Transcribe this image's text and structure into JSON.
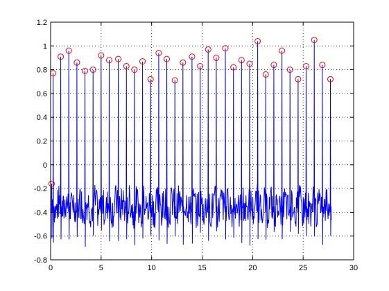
{
  "window": {
    "background": "#ffffff"
  },
  "chart_data": {
    "type": "line",
    "title": "",
    "xlabel": "",
    "ylabel": "",
    "xlim": [
      0,
      30
    ],
    "ylim": [
      -0.8,
      1.2
    ],
    "xticks": [
      0,
      5,
      10,
      15,
      20,
      25,
      30
    ],
    "yticks": [
      -0.8,
      -0.6,
      -0.4,
      -0.2,
      0,
      0.2,
      0.4,
      0.6,
      0.8,
      1,
      1.2
    ],
    "xtick_labels": [
      "0",
      "5",
      "10",
      "15",
      "20",
      "25",
      "30"
    ],
    "ytick_labels": [
      "-0.8",
      "-0.6",
      "-0.4",
      "-0.2",
      "0",
      "0.2",
      "0.4",
      "0.6",
      "0.8",
      "1",
      "1.2"
    ],
    "grid": true,
    "grid_style": "dotted",
    "legend": "none",
    "series": [
      {
        "kind": "line",
        "color": "#0000ff",
        "baseline_range": [
          -0.5,
          -0.2
        ],
        "trough_range": [
          -0.69,
          -0.55
        ],
        "x_end": 27.8,
        "peaks": [
          {
            "x": 0.1,
            "y": -0.16
          },
          {
            "x": 0.25,
            "y": 0.77
          },
          {
            "x": 1.0,
            "y": 0.91
          },
          {
            "x": 1.8,
            "y": 0.96
          },
          {
            "x": 2.6,
            "y": 0.86
          },
          {
            "x": 3.4,
            "y": 0.79
          },
          {
            "x": 4.2,
            "y": 0.8
          },
          {
            "x": 5.0,
            "y": 0.92
          },
          {
            "x": 5.8,
            "y": 0.88
          },
          {
            "x": 6.7,
            "y": 0.89
          },
          {
            "x": 7.5,
            "y": 0.83
          },
          {
            "x": 8.3,
            "y": 0.8
          },
          {
            "x": 9.1,
            "y": 0.87
          },
          {
            "x": 9.9,
            "y": 0.72
          },
          {
            "x": 10.7,
            "y": 0.94
          },
          {
            "x": 11.5,
            "y": 0.89
          },
          {
            "x": 12.3,
            "y": 0.71
          },
          {
            "x": 13.1,
            "y": 0.86
          },
          {
            "x": 14.0,
            "y": 0.91
          },
          {
            "x": 14.8,
            "y": 0.83
          },
          {
            "x": 15.6,
            "y": 0.97
          },
          {
            "x": 16.4,
            "y": 0.9
          },
          {
            "x": 17.3,
            "y": 0.98
          },
          {
            "x": 18.1,
            "y": 0.82
          },
          {
            "x": 18.9,
            "y": 0.88
          },
          {
            "x": 19.7,
            "y": 0.85
          },
          {
            "x": 20.5,
            "y": 1.04
          },
          {
            "x": 21.3,
            "y": 0.76
          },
          {
            "x": 22.1,
            "y": 0.84
          },
          {
            "x": 22.9,
            "y": 0.96
          },
          {
            "x": 23.7,
            "y": 0.8
          },
          {
            "x": 24.5,
            "y": 0.72
          },
          {
            "x": 25.3,
            "y": 0.83
          },
          {
            "x": 26.1,
            "y": 1.05
          },
          {
            "x": 26.9,
            "y": 0.84
          },
          {
            "x": 27.7,
            "y": 0.72
          }
        ]
      },
      {
        "kind": "markers",
        "marker": "circle-open",
        "color": "#ff0000",
        "points": [
          {
            "x": 0.1,
            "y": -0.16
          },
          {
            "x": 0.25,
            "y": 0.77
          },
          {
            "x": 1.0,
            "y": 0.91
          },
          {
            "x": 1.8,
            "y": 0.96
          },
          {
            "x": 2.6,
            "y": 0.86
          },
          {
            "x": 3.4,
            "y": 0.79
          },
          {
            "x": 4.2,
            "y": 0.8
          },
          {
            "x": 5.0,
            "y": 0.92
          },
          {
            "x": 5.8,
            "y": 0.88
          },
          {
            "x": 6.7,
            "y": 0.89
          },
          {
            "x": 7.5,
            "y": 0.83
          },
          {
            "x": 8.3,
            "y": 0.8
          },
          {
            "x": 9.1,
            "y": 0.87
          },
          {
            "x": 9.9,
            "y": 0.72
          },
          {
            "x": 10.7,
            "y": 0.94
          },
          {
            "x": 11.5,
            "y": 0.89
          },
          {
            "x": 12.3,
            "y": 0.71
          },
          {
            "x": 13.1,
            "y": 0.86
          },
          {
            "x": 14.0,
            "y": 0.91
          },
          {
            "x": 14.8,
            "y": 0.83
          },
          {
            "x": 15.6,
            "y": 0.97
          },
          {
            "x": 16.4,
            "y": 0.9
          },
          {
            "x": 17.3,
            "y": 0.98
          },
          {
            "x": 18.1,
            "y": 0.82
          },
          {
            "x": 18.9,
            "y": 0.88
          },
          {
            "x": 19.7,
            "y": 0.85
          },
          {
            "x": 20.5,
            "y": 1.04
          },
          {
            "x": 21.3,
            "y": 0.76
          },
          {
            "x": 22.1,
            "y": 0.84
          },
          {
            "x": 22.9,
            "y": 0.96
          },
          {
            "x": 23.7,
            "y": 0.8
          },
          {
            "x": 24.5,
            "y": 0.72
          },
          {
            "x": 25.3,
            "y": 0.83
          },
          {
            "x": 26.1,
            "y": 1.05
          },
          {
            "x": 26.9,
            "y": 0.84
          },
          {
            "x": 27.7,
            "y": 0.72
          }
        ]
      }
    ]
  }
}
